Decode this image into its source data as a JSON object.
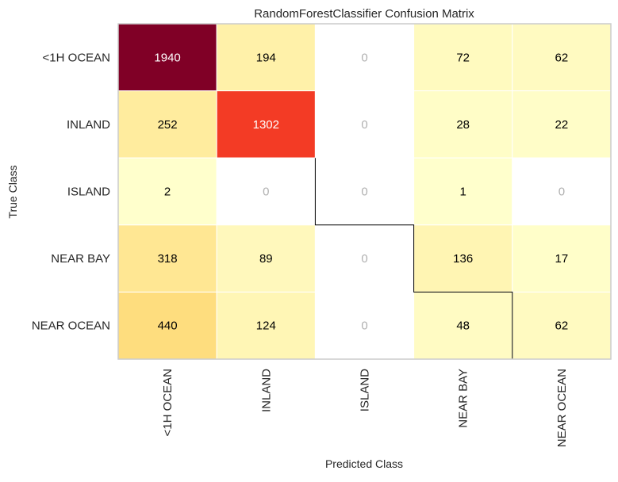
{
  "chart_data": {
    "type": "heatmap",
    "title": "RandomForestClassifier Confusion Matrix",
    "xlabel": "Predicted Class",
    "ylabel": "True Class",
    "rows": [
      "<1H OCEAN",
      "INLAND",
      "ISLAND",
      "NEAR BAY",
      "NEAR OCEAN"
    ],
    "columns": [
      "<1H OCEAN",
      "INLAND",
      "ISLAND",
      "NEAR BAY",
      "NEAR OCEAN"
    ],
    "values": [
      [
        1940,
        194,
        0,
        72,
        62
      ],
      [
        252,
        1302,
        0,
        28,
        22
      ],
      [
        2,
        0,
        0,
        1,
        0
      ],
      [
        318,
        89,
        0,
        136,
        17
      ],
      [
        440,
        124,
        0,
        48,
        62
      ]
    ],
    "colormap": "YlOrRd",
    "zero_cell_color": "#ffffff",
    "zero_text_color": "#b0b0b0",
    "grid": false,
    "legend": "none"
  }
}
